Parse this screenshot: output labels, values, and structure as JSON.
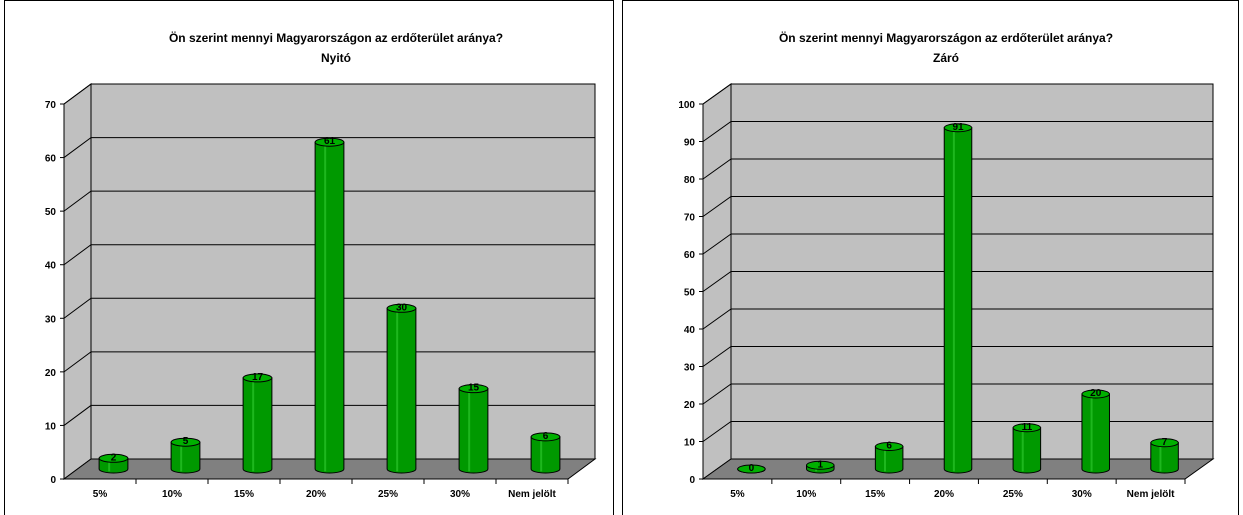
{
  "chart_data": [
    {
      "type": "bar",
      "title": "Ön szerint mennyi Magyarországon az erdőterület aránya?",
      "subtitle": "Nyitó",
      "categories": [
        "5%",
        "10%",
        "15%",
        "20%",
        "25%",
        "30%",
        "Nem jelölt"
      ],
      "values": [
        2,
        5,
        17,
        61,
        30,
        15,
        6
      ],
      "ylim": [
        0,
        70
      ],
      "yticks": [
        0,
        10,
        20,
        30,
        40,
        50,
        60,
        70
      ],
      "grid": true,
      "legend": "none",
      "bar_color": "#009900",
      "plot_color": "#c0c0c0",
      "floor_color": "#808080"
    },
    {
      "type": "bar",
      "title": "Ön szerint mennyi Magyarországon az erdőterület aránya?",
      "subtitle": "Záró",
      "categories": [
        "5%",
        "10%",
        "15%",
        "20%",
        "25%",
        "30%",
        "Nem jelölt"
      ],
      "values": [
        0,
        1,
        6,
        91,
        11,
        20,
        7
      ],
      "ylim": [
        0,
        100
      ],
      "yticks": [
        0,
        10,
        20,
        30,
        40,
        50,
        60,
        70,
        80,
        90,
        100
      ],
      "grid": true,
      "legend": "none",
      "bar_color": "#009900",
      "plot_color": "#c0c0c0",
      "floor_color": "#808080"
    }
  ]
}
